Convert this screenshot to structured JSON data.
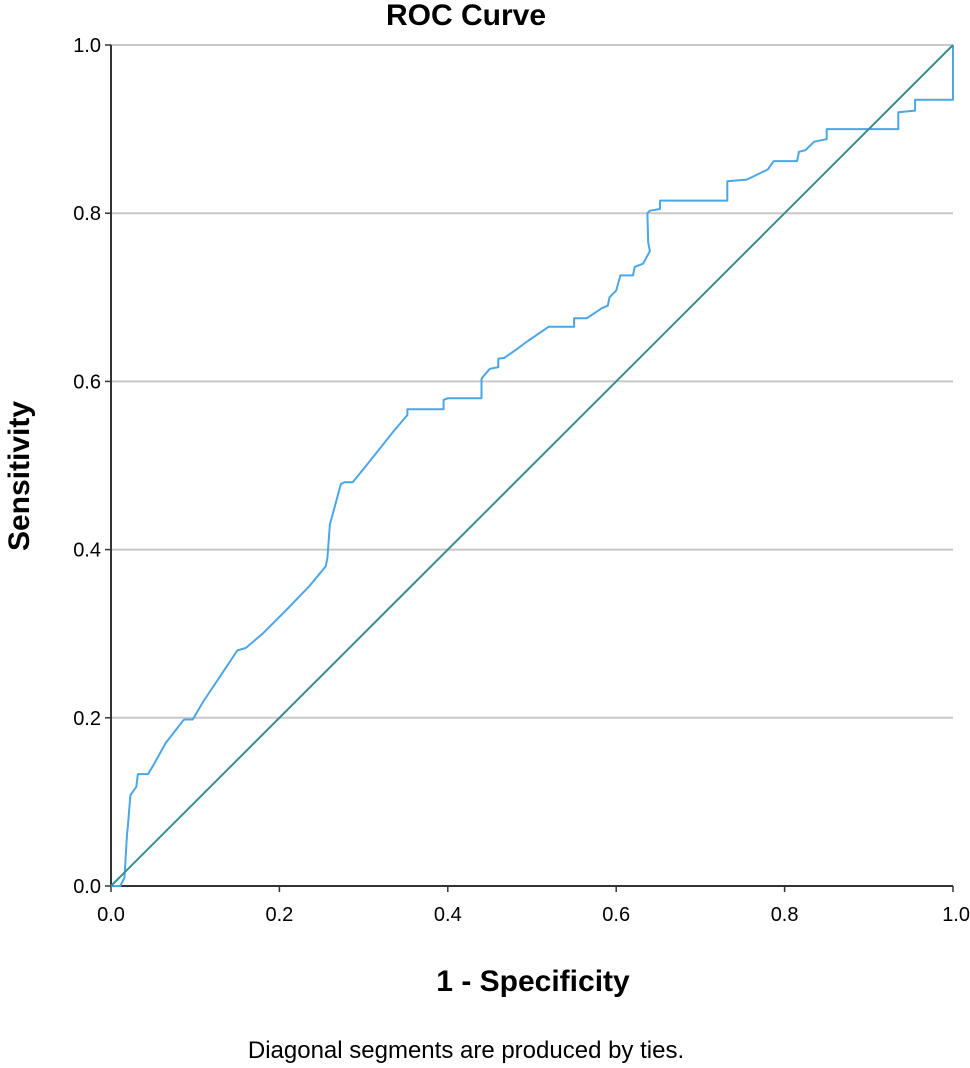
{
  "chart_data": {
    "type": "line",
    "title": "ROC Curve",
    "xlabel": "1 - Specificity",
    "ylabel": "Sensitivity",
    "xlim": [
      0,
      1
    ],
    "ylim": [
      0,
      1
    ],
    "x_ticks": [
      "0.0",
      "0.2",
      "0.4",
      "0.6",
      "0.8",
      "1.0"
    ],
    "y_ticks": [
      "0.0",
      "0.2",
      "0.4",
      "0.6",
      "0.8",
      "1.0"
    ],
    "grid": "horizontal",
    "legend": "none",
    "footnote": "Diagonal segments are produced by ties.",
    "series": [
      {
        "color": "#4ba6e6",
        "x": [
          0.0,
          0.011,
          0.016,
          0.019,
          0.02,
          0.023,
          0.03,
          0.032,
          0.044,
          0.05,
          0.065,
          0.075,
          0.085,
          0.087,
          0.097,
          0.11,
          0.13,
          0.15,
          0.16,
          0.18,
          0.21,
          0.235,
          0.255,
          0.257,
          0.26,
          0.273,
          0.277,
          0.287,
          0.3,
          0.335,
          0.352,
          0.352,
          0.395,
          0.395,
          0.4,
          0.44,
          0.44,
          0.443,
          0.45,
          0.46,
          0.46,
          0.467,
          0.48,
          0.495,
          0.52,
          0.55,
          0.55,
          0.565,
          0.583,
          0.59,
          0.592,
          0.597,
          0.6,
          0.605,
          0.62,
          0.622,
          0.632,
          0.64,
          0.638,
          0.637,
          0.64,
          0.652,
          0.652,
          0.67,
          0.7,
          0.732,
          0.732,
          0.755,
          0.78,
          0.787,
          0.815,
          0.817,
          0.825,
          0.835,
          0.85,
          0.85,
          0.87,
          0.9,
          0.935,
          0.935,
          0.955,
          0.955,
          0.998,
          0.998,
          1.0,
          1.0
        ],
        "y": [
          0.0,
          0.0,
          0.01,
          0.062,
          0.07,
          0.108,
          0.118,
          0.133,
          0.133,
          0.143,
          0.17,
          0.183,
          0.196,
          0.198,
          0.198,
          0.22,
          0.25,
          0.28,
          0.283,
          0.3,
          0.33,
          0.356,
          0.38,
          0.39,
          0.43,
          0.478,
          0.48,
          0.48,
          0.496,
          0.54,
          0.56,
          0.567,
          0.567,
          0.578,
          0.58,
          0.58,
          0.603,
          0.607,
          0.615,
          0.617,
          0.627,
          0.628,
          0.637,
          0.648,
          0.665,
          0.665,
          0.675,
          0.675,
          0.687,
          0.69,
          0.7,
          0.705,
          0.708,
          0.726,
          0.726,
          0.736,
          0.74,
          0.755,
          0.765,
          0.8,
          0.803,
          0.805,
          0.815,
          0.815,
          0.815,
          0.815,
          0.838,
          0.84,
          0.852,
          0.862,
          0.862,
          0.873,
          0.875,
          0.885,
          0.888,
          0.9,
          0.9,
          0.9,
          0.9,
          0.92,
          0.922,
          0.935,
          0.935,
          0.935,
          0.935,
          1.0
        ]
      },
      {
        "color": "#3c8c8e",
        "x": [
          0.0,
          1.0
        ],
        "y": [
          0.0,
          1.0
        ]
      }
    ]
  }
}
